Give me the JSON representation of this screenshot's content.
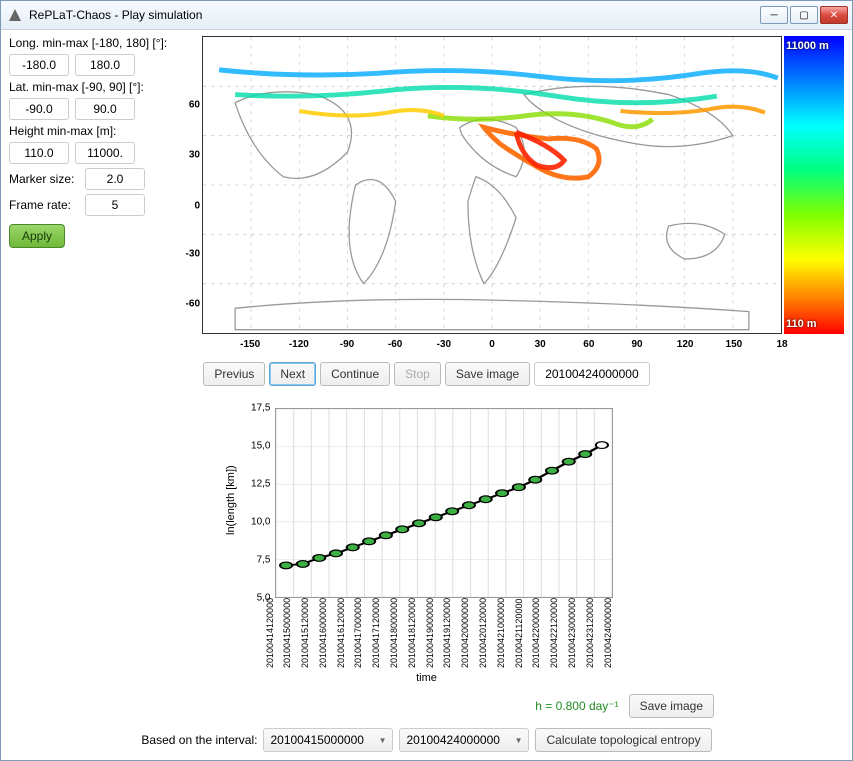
{
  "window": {
    "title": "RePLaT-Chaos - Play simulation"
  },
  "controls": {
    "long_label": "Long. min-max [-180, 180] [°]:",
    "long_min": "-180.0",
    "long_max": "180.0",
    "lat_label": "Lat. min-max [-90, 90] [°]:",
    "lat_min": "-90.0",
    "lat_max": "90.0",
    "height_label": "Height min-max [m]:",
    "height_min": "110.0",
    "height_max": "11000.",
    "marker_label": "Marker size:",
    "marker_value": "2.0",
    "frame_label": "Frame rate:",
    "frame_value": "5",
    "apply_label": "Apply"
  },
  "map": {
    "yticks": [
      {
        "v": 60,
        "pos": 23
      },
      {
        "v": 30,
        "pos": 40
      },
      {
        "v": 0,
        "pos": 57
      },
      {
        "v": -30,
        "pos": 73
      },
      {
        "v": -60,
        "pos": 90
      }
    ],
    "xticks": [
      {
        "v": -150,
        "pos": 8.3
      },
      {
        "v": -120,
        "pos": 16.7
      },
      {
        "v": -90,
        "pos": 25.0
      },
      {
        "v": -60,
        "pos": 33.3
      },
      {
        "v": -30,
        "pos": 41.7
      },
      {
        "v": 0,
        "pos": 50.0
      },
      {
        "v": 30,
        "pos": 58.3
      },
      {
        "v": 60,
        "pos": 66.7
      },
      {
        "v": 90,
        "pos": 75.0
      },
      {
        "v": 120,
        "pos": 83.3
      },
      {
        "v": 150,
        "pos": 91.7
      },
      {
        "v": 18,
        "pos": 100.0,
        "label": "18"
      }
    ],
    "colorbar_top": "11000 m",
    "colorbar_bottom": "110 m"
  },
  "buttons": {
    "previous": "Previus",
    "next": "Next",
    "continue": "Continue",
    "stop": "Stop",
    "save_image": "Save image",
    "timestamp": "20100424000000"
  },
  "chart": {
    "ylabel": "ln(length [km])",
    "xlabel": "time",
    "ylim": [
      5.0,
      17.5
    ],
    "yticks": [
      5.0,
      7.5,
      10.0,
      12.5,
      15.0,
      17.5
    ],
    "xticks": [
      "20100414120000",
      "20100415000000",
      "20100415120000",
      "20100416000000",
      "20100416120000",
      "20100417000000",
      "20100417120000",
      "20100418000000",
      "20100418120000",
      "20100419000000",
      "20100419120000",
      "20100420000000",
      "20100420120000",
      "20100421000000",
      "20100421120000",
      "20100422000000",
      "20100422120000",
      "20100423000000",
      "20100423120000",
      "20100424000000"
    ],
    "points": [
      {
        "x": 0.0,
        "y": 7.1
      },
      {
        "x": 0.053,
        "y": 7.2
      },
      {
        "x": 0.105,
        "y": 7.6
      },
      {
        "x": 0.158,
        "y": 7.9
      },
      {
        "x": 0.211,
        "y": 8.3
      },
      {
        "x": 0.263,
        "y": 8.7
      },
      {
        "x": 0.316,
        "y": 9.1
      },
      {
        "x": 0.368,
        "y": 9.5
      },
      {
        "x": 0.421,
        "y": 9.9
      },
      {
        "x": 0.474,
        "y": 10.3
      },
      {
        "x": 0.526,
        "y": 10.7
      },
      {
        "x": 0.579,
        "y": 11.1
      },
      {
        "x": 0.632,
        "y": 11.5
      },
      {
        "x": 0.684,
        "y": 11.9
      },
      {
        "x": 0.737,
        "y": 12.3
      },
      {
        "x": 0.789,
        "y": 12.8
      },
      {
        "x": 0.842,
        "y": 13.4
      },
      {
        "x": 0.895,
        "y": 14.0
      },
      {
        "x": 0.947,
        "y": 14.5
      },
      {
        "x": 1.0,
        "y": 15.1
      }
    ],
    "line_color": "#000000",
    "marker_fill": "#3cb043",
    "marker_stroke": "#000000",
    "grid_color": "#dddddd",
    "h_label": "h = 0.800 day⁻¹",
    "save_image": "Save image"
  },
  "bottom": {
    "label": "Based on the interval:",
    "combo1": "20100415000000",
    "combo2": "20100424000000",
    "calc": "Calculate topological entropy"
  }
}
